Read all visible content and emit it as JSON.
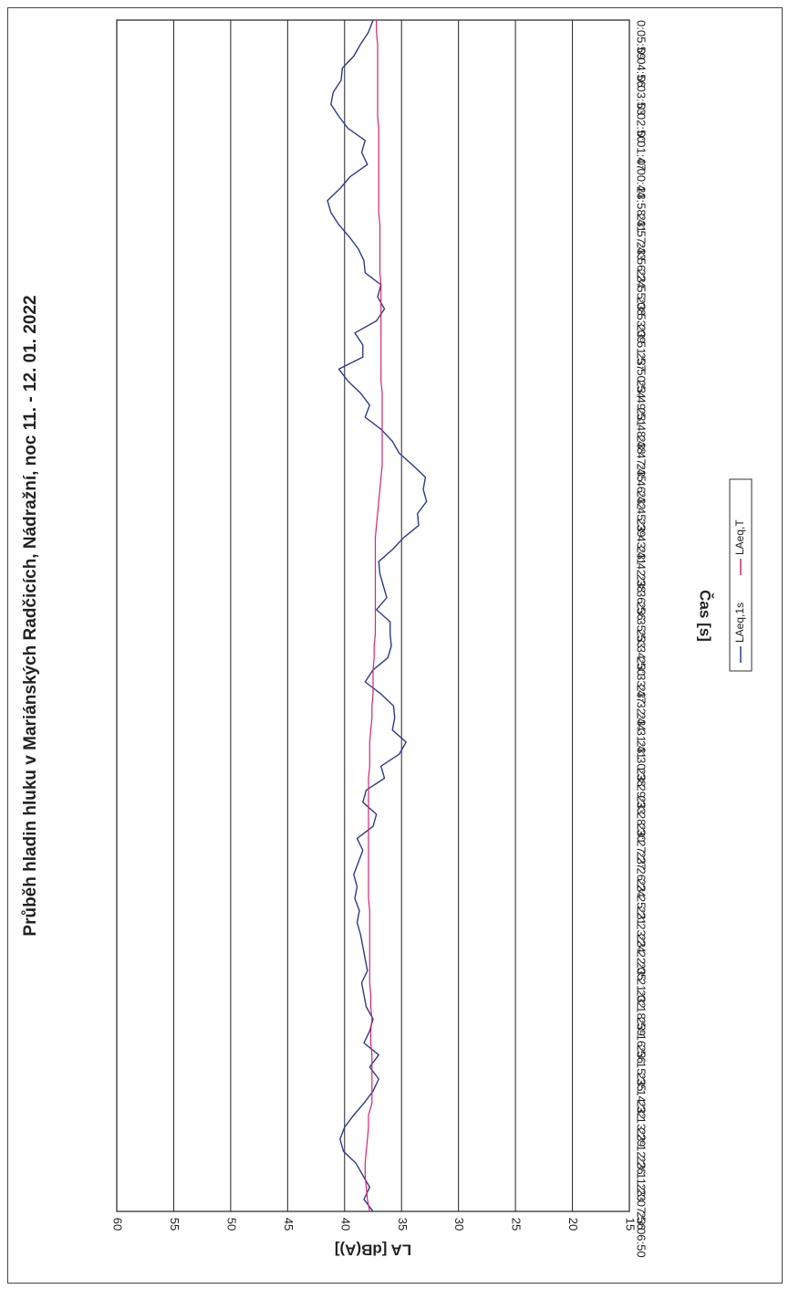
{
  "chart_data": {
    "type": "line",
    "title": "Průběh hladin hluku v Mariánských Radčicích, Nádražní, noc 11. - 12. 01. 2022",
    "xlabel": "Čas [s]",
    "ylabel": "LA [dB(A)]",
    "ylim": [
      15,
      60
    ],
    "yticks": [
      "15",
      "20",
      "25",
      "30",
      "35",
      "40",
      "45",
      "50",
      "55",
      "60"
    ],
    "grid": true,
    "legend_position": "bottom",
    "orientation": "rotated 90 degrees clockwise",
    "xticks": [
      "23:06:50",
      "23:07:56",
      "23:11:23",
      "23:12:26",
      "23:13:29",
      "23:14:32",
      "23:15:35",
      "23:16:56",
      "23:18:59",
      "23:21:02",
      "23:22:05",
      "23:23:24",
      "23:25:21",
      "23:26:24",
      "23:27:27",
      "23:28:30",
      "23:29:33",
      "23:30:38",
      "23:31:41",
      "23:32:44",
      "23:33:47",
      "23:34:50",
      "23:35:53",
      "23:36:56",
      "23:42:38",
      "23:43:41",
      "23:45:39",
      "23:46:42",
      "23:47:45",
      "23:48:48",
      "23:49:51",
      "23:50:54",
      "23:51:57",
      "23:53:09",
      "23:55:08",
      "23:56:24",
      "23:57:43",
      "23:58:41",
      "0:00:44",
      "0:01:47",
      "0:02:50",
      "0:03:53",
      "0:04:56",
      "0:05:59"
    ],
    "series": [
      {
        "name": "LAeq,1s",
        "color": "#2b3a8f",
        "values": [
          37.5,
          38.3,
          37.8,
          38.4,
          39,
          40.1,
          40.4,
          40,
          39.2,
          38.3,
          37.5,
          37,
          37.8,
          37,
          38.3,
          37.8,
          37.5,
          38.1,
          38.3,
          38.5,
          38,
          38.2,
          38.4,
          38.6,
          38.9,
          38.7,
          39.1,
          38.9,
          39.2,
          38.8,
          38.4,
          38.9,
          37.5,
          37.2,
          38.4,
          38.1,
          36.5,
          36.8,
          35.2,
          34.6,
          35.8,
          35.6,
          35.7,
          36.8,
          38.2,
          37.5,
          36.2,
          35.9,
          36,
          36,
          37.2,
          36.3,
          36.6,
          36.9,
          37,
          35.8,
          34.8,
          33.5,
          33.6,
          32.8,
          33.1,
          32.9,
          34,
          35.2,
          35.8,
          36.8,
          38.2,
          37.8,
          38.6,
          39.7,
          40.5,
          38.4,
          38.4,
          39.1,
          37.2,
          36.5,
          37.1,
          36.8,
          38.2,
          38.3,
          38.8,
          39.6,
          40.5,
          41.2,
          41.5,
          40.4,
          39.5,
          38,
          38.5,
          38.2,
          39.7,
          40.5,
          41.2,
          41,
          40.3,
          40.2,
          39.2,
          38.6,
          37.9,
          37.5
        ]
      },
      {
        "name": "LAeq,T",
        "color": "#d6246e",
        "values": [
          37.8,
          38,
          38.1,
          38.2,
          38.2,
          38.1,
          38,
          37.9,
          37.9,
          37.6,
          37.6,
          37.6,
          37.6,
          37.6,
          37.7,
          37.7,
          37.6,
          37.7,
          37.7,
          37.8,
          37.8,
          37.8,
          37.8,
          37.8,
          37.8,
          37.8,
          37.9,
          37.9,
          37.9,
          37.9,
          37.9,
          37.9,
          37.9,
          37.9,
          37.9,
          37.9,
          37.9,
          37.8,
          37.8,
          37.8,
          37.7,
          37.6,
          37.6,
          37.5,
          37.5,
          37.5,
          37.4,
          37.4,
          37.3,
          37.3,
          37.3,
          37.3,
          37.3,
          37.3,
          37.3,
          37.3,
          37.3,
          37.2,
          37.1,
          37,
          36.9,
          36.8,
          36.7,
          36.7,
          36.7,
          36.7,
          36.7,
          36.7,
          36.7,
          36.8,
          36.8,
          36.8,
          36.8,
          36.8,
          36.8,
          36.8,
          36.8,
          36.8,
          36.9,
          36.9,
          36.9,
          36.9,
          36.9,
          37,
          37,
          37,
          37,
          37,
          37,
          37,
          37,
          37.1,
          37.1,
          37.1,
          37.1,
          37.1,
          37.1,
          37.1,
          37.2,
          37.2
        ]
      }
    ]
  }
}
